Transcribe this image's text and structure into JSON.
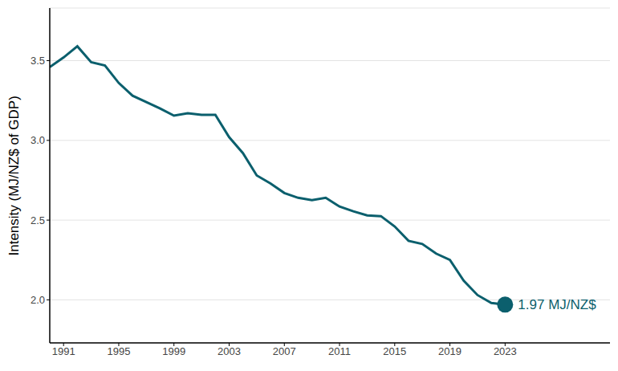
{
  "chart_data": {
    "type": "line",
    "y_label": "Intensity (MJ/NZ$ of GDP)",
    "x": [
      1990,
      1991,
      1992,
      1993,
      1994,
      1995,
      1996,
      1997,
      1998,
      1999,
      2000,
      2001,
      2002,
      2003,
      2004,
      2005,
      2006,
      2007,
      2008,
      2009,
      2010,
      2011,
      2012,
      2013,
      2014,
      2015,
      2016,
      2017,
      2018,
      2019,
      2020,
      2021,
      2022,
      2023
    ],
    "values": [
      3.46,
      3.52,
      3.59,
      3.49,
      3.47,
      3.36,
      3.28,
      3.24,
      3.2,
      3.155,
      3.17,
      3.16,
      3.16,
      3.02,
      2.92,
      2.78,
      2.73,
      2.67,
      2.64,
      2.625,
      2.64,
      2.585,
      2.555,
      2.53,
      2.525,
      2.46,
      2.37,
      2.35,
      2.29,
      2.25,
      2.12,
      2.03,
      1.98,
      1.97
    ],
    "color": "#0b5f6d",
    "xlim": [
      1990,
      2030.6
    ],
    "xticks": [
      1991,
      1995,
      1999,
      2003,
      2007,
      2011,
      2015,
      2019,
      2023
    ],
    "ylim": [
      1.73,
      3.83
    ],
    "yticks": [
      {
        "value": 2,
        "label": "2.0"
      },
      {
        "value": 2.5,
        "label": "2.5"
      },
      {
        "value": 3,
        "label": "3.0"
      },
      {
        "value": 3.5,
        "label": "3.5"
      }
    ],
    "grid": true,
    "annotation": "1.97 MJ/NZ$"
  }
}
